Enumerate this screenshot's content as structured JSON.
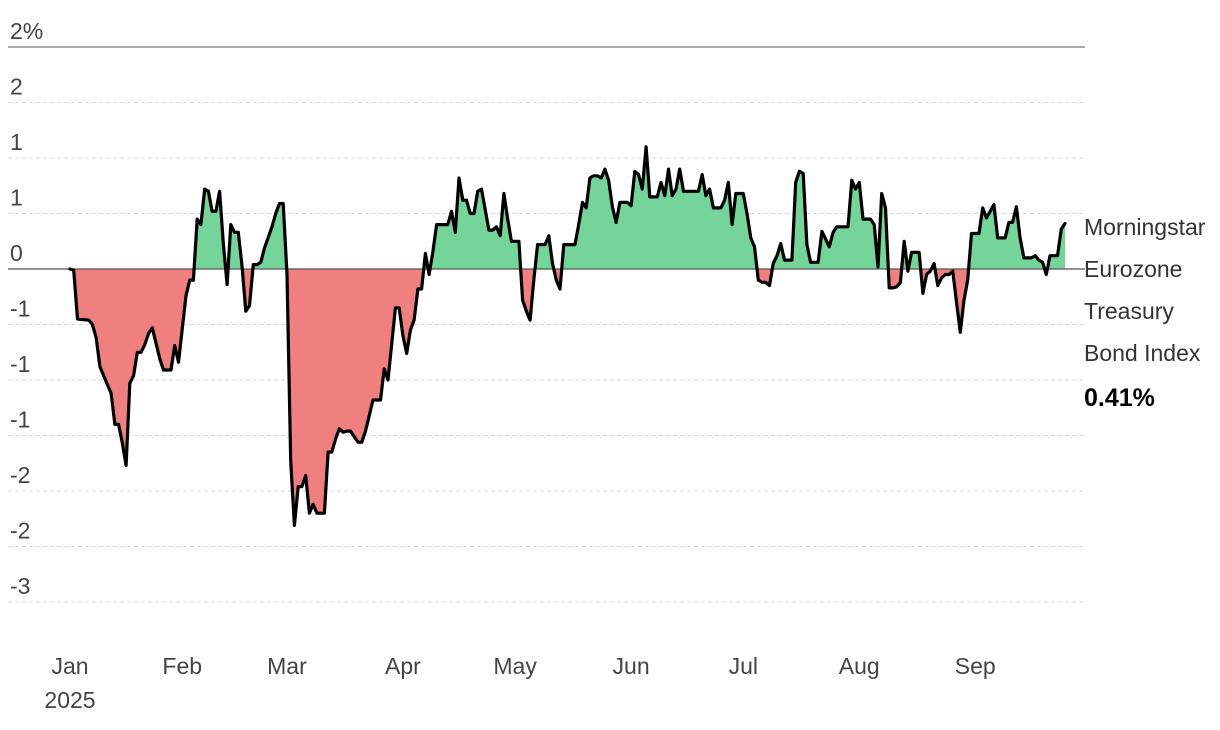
{
  "chart_data": {
    "type": "area",
    "title": "",
    "xlabel": "",
    "ylabel": "",
    "ylim": [
      -3.0,
      2.0
    ],
    "y_ticks": [
      2.0,
      1.5,
      1.0,
      0.5,
      0.0,
      -0.5,
      -1.0,
      -1.5,
      -2.0,
      -2.5,
      -3.0
    ],
    "y_tick_labels": [
      "2%",
      "2",
      "1",
      "1",
      "0",
      "-1",
      "-1",
      "-1",
      "-2",
      "-2",
      "-3"
    ],
    "x_ticks": [
      {
        "date": "2025-01-01",
        "label": "Jan",
        "sublabel": "2025"
      },
      {
        "date": "2025-02-01",
        "label": "Feb",
        "sublabel": ""
      },
      {
        "date": "2025-03-01",
        "label": "Mar",
        "sublabel": ""
      },
      {
        "date": "2025-04-01",
        "label": "Apr",
        "sublabel": ""
      },
      {
        "date": "2025-05-01",
        "label": "May",
        "sublabel": ""
      },
      {
        "date": "2025-06-01",
        "label": "Jun",
        "sublabel": ""
      },
      {
        "date": "2025-07-01",
        "label": "Jul",
        "sublabel": ""
      },
      {
        "date": "2025-08-01",
        "label": "Aug",
        "sublabel": ""
      },
      {
        "date": "2025-09-01",
        "label": "Sep",
        "sublabel": ""
      }
    ],
    "grid": true,
    "fill_colors": {
      "positive": "#74d49a",
      "negative": "#f08080"
    },
    "line_color": "#000000",
    "series": [
      {
        "name": "Morningstar Eurozone Treasury Bond Index",
        "end_label_lines": [
          "Morningstar",
          "Eurozone",
          "Treasury",
          "Bond Index"
        ],
        "final_value_label": "0.41%",
        "points": [
          [
            "2025-01-02",
            0.0
          ],
          [
            "2025-01-03",
            -0.01
          ],
          [
            "2025-01-04",
            -0.45
          ],
          [
            "2025-01-07",
            -0.46
          ],
          [
            "2025-01-08",
            -0.5
          ],
          [
            "2025-01-09",
            -0.62
          ],
          [
            "2025-01-10",
            -0.88
          ],
          [
            "2025-01-13",
            -1.12
          ],
          [
            "2025-01-14",
            -1.4
          ],
          [
            "2025-01-15",
            -1.4
          ],
          [
            "2025-01-16",
            -1.57
          ],
          [
            "2025-01-17",
            -1.77
          ],
          [
            "2025-01-18",
            -1.03
          ],
          [
            "2025-01-19",
            -0.96
          ],
          [
            "2025-01-20",
            -0.75
          ],
          [
            "2025-01-21",
            -0.75
          ],
          [
            "2025-01-22",
            -0.68
          ],
          [
            "2025-01-23",
            -0.58
          ],
          [
            "2025-01-24",
            -0.53
          ],
          [
            "2025-01-26",
            -0.81
          ],
          [
            "2025-01-27",
            -0.91
          ],
          [
            "2025-01-28",
            -0.91
          ],
          [
            "2025-01-29",
            -0.91
          ],
          [
            "2025-01-30",
            -0.69
          ],
          [
            "2025-01-31",
            -0.84
          ],
          [
            "2025-02-02",
            -0.24
          ],
          [
            "2025-02-03",
            -0.1
          ],
          [
            "2025-02-04",
            -0.1
          ],
          [
            "2025-02-05",
            0.45
          ],
          [
            "2025-02-06",
            0.4
          ],
          [
            "2025-02-07",
            0.72
          ],
          [
            "2025-02-08",
            0.7
          ],
          [
            "2025-02-09",
            0.52
          ],
          [
            "2025-02-10",
            0.52
          ],
          [
            "2025-02-11",
            0.7
          ],
          [
            "2025-02-12",
            0.22
          ],
          [
            "2025-02-13",
            -0.14
          ],
          [
            "2025-02-14",
            0.4
          ],
          [
            "2025-02-15",
            0.33
          ],
          [
            "2025-02-16",
            0.33
          ],
          [
            "2025-02-17",
            0.02
          ],
          [
            "2025-02-18",
            -0.38
          ],
          [
            "2025-02-19",
            -0.33
          ],
          [
            "2025-02-20",
            0.04
          ],
          [
            "2025-02-21",
            0.04
          ],
          [
            "2025-02-22",
            0.06
          ],
          [
            "2025-02-23",
            0.19
          ],
          [
            "2025-02-25",
            0.38
          ],
          [
            "2025-02-26",
            0.5
          ],
          [
            "2025-02-27",
            0.59
          ],
          [
            "2025-02-28",
            0.59
          ],
          [
            "2025-03-01",
            -0.05
          ],
          [
            "2025-03-02",
            -1.73
          ],
          [
            "2025-03-03",
            -2.31
          ],
          [
            "2025-03-04",
            -1.96
          ],
          [
            "2025-03-05",
            -1.96
          ],
          [
            "2025-03-06",
            -1.86
          ],
          [
            "2025-03-07",
            -2.2
          ],
          [
            "2025-03-08",
            -2.12
          ],
          [
            "2025-03-09",
            -2.2
          ],
          [
            "2025-03-11",
            -2.2
          ],
          [
            "2025-03-12",
            -1.65
          ],
          [
            "2025-03-13",
            -1.65
          ],
          [
            "2025-03-14",
            -1.53
          ],
          [
            "2025-03-15",
            -1.44
          ],
          [
            "2025-03-16",
            -1.47
          ],
          [
            "2025-03-17",
            -1.46
          ],
          [
            "2025-03-18",
            -1.46
          ],
          [
            "2025-03-20",
            -1.56
          ],
          [
            "2025-03-21",
            -1.56
          ],
          [
            "2025-03-22",
            -1.46
          ],
          [
            "2025-03-24",
            -1.18
          ],
          [
            "2025-03-25",
            -1.18
          ],
          [
            "2025-03-26",
            -1.18
          ],
          [
            "2025-03-27",
            -0.9
          ],
          [
            "2025-03-28",
            -1.0
          ],
          [
            "2025-03-30",
            -0.35
          ],
          [
            "2025-03-31",
            -0.35
          ],
          [
            "2025-04-01",
            -0.6
          ],
          [
            "2025-04-02",
            -0.76
          ],
          [
            "2025-04-03",
            -0.55
          ],
          [
            "2025-04-04",
            -0.46
          ],
          [
            "2025-04-05",
            -0.18
          ],
          [
            "2025-04-06",
            -0.18
          ],
          [
            "2025-04-07",
            0.14
          ],
          [
            "2025-04-08",
            -0.05
          ],
          [
            "2025-04-09",
            0.15
          ],
          [
            "2025-04-10",
            0.4
          ],
          [
            "2025-04-11",
            0.4
          ],
          [
            "2025-04-13",
            0.4
          ],
          [
            "2025-04-14",
            0.52
          ],
          [
            "2025-04-15",
            0.33
          ],
          [
            "2025-04-16",
            0.82
          ],
          [
            "2025-04-17",
            0.62
          ],
          [
            "2025-04-18",
            0.62
          ],
          [
            "2025-04-19",
            0.5
          ],
          [
            "2025-04-20",
            0.5
          ],
          [
            "2025-04-21",
            0.7
          ],
          [
            "2025-04-22",
            0.72
          ],
          [
            "2025-04-24",
            0.35
          ],
          [
            "2025-04-25",
            0.35
          ],
          [
            "2025-04-26",
            0.38
          ],
          [
            "2025-04-27",
            0.3
          ],
          [
            "2025-04-28",
            0.68
          ],
          [
            "2025-04-29",
            0.45
          ],
          [
            "2025-04-30",
            0.25
          ],
          [
            "2025-05-02",
            0.25
          ],
          [
            "2025-05-03",
            -0.28
          ],
          [
            "2025-05-04",
            -0.38
          ],
          [
            "2025-05-05",
            -0.46
          ],
          [
            "2025-05-06",
            -0.1
          ],
          [
            "2025-05-07",
            0.22
          ],
          [
            "2025-05-08",
            0.22
          ],
          [
            "2025-05-09",
            0.22
          ],
          [
            "2025-05-10",
            0.3
          ],
          [
            "2025-05-11",
            0.05
          ],
          [
            "2025-05-12",
            -0.1
          ],
          [
            "2025-05-13",
            -0.18
          ],
          [
            "2025-05-14",
            0.22
          ],
          [
            "2025-05-15",
            0.22
          ],
          [
            "2025-05-17",
            0.22
          ],
          [
            "2025-05-18",
            0.4
          ],
          [
            "2025-05-19",
            0.6
          ],
          [
            "2025-05-20",
            0.55
          ],
          [
            "2025-05-21",
            0.82
          ],
          [
            "2025-05-22",
            0.84
          ],
          [
            "2025-05-23",
            0.84
          ],
          [
            "2025-05-24",
            0.82
          ],
          [
            "2025-05-25",
            0.9
          ],
          [
            "2025-05-26",
            0.8
          ],
          [
            "2025-05-27",
            0.56
          ],
          [
            "2025-05-28",
            0.42
          ],
          [
            "2025-05-29",
            0.6
          ],
          [
            "2025-05-30",
            0.6
          ],
          [
            "2025-05-31",
            0.6
          ],
          [
            "2025-06-01",
            0.57
          ],
          [
            "2025-06-02",
            0.88
          ],
          [
            "2025-06-03",
            0.85
          ],
          [
            "2025-06-04",
            0.72
          ],
          [
            "2025-06-05",
            1.1
          ],
          [
            "2025-06-06",
            0.65
          ],
          [
            "2025-06-07",
            0.65
          ],
          [
            "2025-06-08",
            0.65
          ],
          [
            "2025-06-09",
            0.78
          ],
          [
            "2025-06-10",
            0.66
          ],
          [
            "2025-06-11",
            0.9
          ],
          [
            "2025-06-12",
            0.66
          ],
          [
            "2025-06-13",
            0.72
          ],
          [
            "2025-06-14",
            0.9
          ],
          [
            "2025-06-15",
            0.7
          ],
          [
            "2025-06-16",
            0.7
          ],
          [
            "2025-06-17",
            0.7
          ],
          [
            "2025-06-19",
            0.7
          ],
          [
            "2025-06-20",
            0.85
          ],
          [
            "2025-06-21",
            0.66
          ],
          [
            "2025-06-22",
            0.72
          ],
          [
            "2025-06-23",
            0.55
          ],
          [
            "2025-06-24",
            0.55
          ],
          [
            "2025-06-25",
            0.55
          ],
          [
            "2025-06-26",
            0.62
          ],
          [
            "2025-06-27",
            0.78
          ],
          [
            "2025-06-28",
            0.4
          ],
          [
            "2025-06-29",
            0.68
          ],
          [
            "2025-06-30",
            0.68
          ],
          [
            "2025-07-01",
            0.68
          ],
          [
            "2025-07-02",
            0.5
          ],
          [
            "2025-07-03",
            0.28
          ],
          [
            "2025-07-04",
            0.2
          ],
          [
            "2025-07-05",
            -0.1
          ],
          [
            "2025-07-06",
            -0.12
          ],
          [
            "2025-07-07",
            -0.12
          ],
          [
            "2025-07-08",
            -0.15
          ],
          [
            "2025-07-09",
            0.05
          ],
          [
            "2025-07-10",
            0.12
          ],
          [
            "2025-07-11",
            0.23
          ],
          [
            "2025-07-12",
            0.08
          ],
          [
            "2025-07-13",
            0.08
          ],
          [
            "2025-07-14",
            0.08
          ],
          [
            "2025-07-15",
            0.78
          ],
          [
            "2025-07-16",
            0.88
          ],
          [
            "2025-07-17",
            0.86
          ],
          [
            "2025-07-18",
            0.22
          ],
          [
            "2025-07-19",
            0.06
          ],
          [
            "2025-07-20",
            0.06
          ],
          [
            "2025-07-21",
            0.06
          ],
          [
            "2025-07-22",
            0.34
          ],
          [
            "2025-07-23",
            0.27
          ],
          [
            "2025-07-24",
            0.2
          ],
          [
            "2025-07-25",
            0.33
          ],
          [
            "2025-07-26",
            0.38
          ],
          [
            "2025-07-27",
            0.38
          ],
          [
            "2025-07-29",
            0.38
          ],
          [
            "2025-07-30",
            0.8
          ],
          [
            "2025-07-31",
            0.72
          ],
          [
            "2025-08-01",
            0.78
          ],
          [
            "2025-08-02",
            0.45
          ],
          [
            "2025-08-03",
            0.45
          ],
          [
            "2025-08-04",
            0.45
          ],
          [
            "2025-08-05",
            0.4
          ],
          [
            "2025-08-06",
            0.02
          ],
          [
            "2025-08-07",
            0.68
          ],
          [
            "2025-08-08",
            0.55
          ],
          [
            "2025-08-09",
            -0.17
          ],
          [
            "2025-08-10",
            -0.17
          ],
          [
            "2025-08-11",
            -0.16
          ],
          [
            "2025-08-12",
            -0.12
          ],
          [
            "2025-08-13",
            0.25
          ],
          [
            "2025-08-14",
            -0.02
          ],
          [
            "2025-08-15",
            0.15
          ],
          [
            "2025-08-16",
            0.15
          ],
          [
            "2025-08-17",
            0.15
          ],
          [
            "2025-08-18",
            -0.22
          ],
          [
            "2025-08-19",
            -0.05
          ],
          [
            "2025-08-20",
            -0.02
          ],
          [
            "2025-08-21",
            0.05
          ],
          [
            "2025-08-22",
            -0.15
          ],
          [
            "2025-08-23",
            -0.08
          ],
          [
            "2025-08-24",
            -0.05
          ],
          [
            "2025-08-25",
            -0.05
          ],
          [
            "2025-08-26",
            -0.02
          ],
          [
            "2025-08-27",
            -0.3
          ],
          [
            "2025-08-28",
            -0.57
          ],
          [
            "2025-08-29",
            -0.28
          ],
          [
            "2025-08-30",
            -0.1
          ],
          [
            "2025-08-31",
            0.32
          ],
          [
            "2025-09-01",
            0.32
          ],
          [
            "2025-09-02",
            0.32
          ],
          [
            "2025-09-03",
            0.55
          ],
          [
            "2025-09-04",
            0.46
          ],
          [
            "2025-09-05",
            0.52
          ],
          [
            "2025-09-06",
            0.58
          ],
          [
            "2025-09-07",
            0.28
          ],
          [
            "2025-09-08",
            0.28
          ],
          [
            "2025-09-09",
            0.28
          ],
          [
            "2025-09-10",
            0.42
          ],
          [
            "2025-09-11",
            0.42
          ],
          [
            "2025-09-12",
            0.56
          ],
          [
            "2025-09-13",
            0.28
          ],
          [
            "2025-09-14",
            0.1
          ],
          [
            "2025-09-15",
            0.1
          ],
          [
            "2025-09-16",
            0.1
          ],
          [
            "2025-09-17",
            0.12
          ],
          [
            "2025-09-18",
            0.08
          ],
          [
            "2025-09-19",
            0.06
          ],
          [
            "2025-09-20",
            -0.05
          ],
          [
            "2025-09-21",
            0.12
          ],
          [
            "2025-09-22",
            0.12
          ],
          [
            "2025-09-23",
            0.12
          ],
          [
            "2025-09-24",
            0.36
          ],
          [
            "2025-09-25",
            0.41
          ]
        ]
      }
    ]
  }
}
